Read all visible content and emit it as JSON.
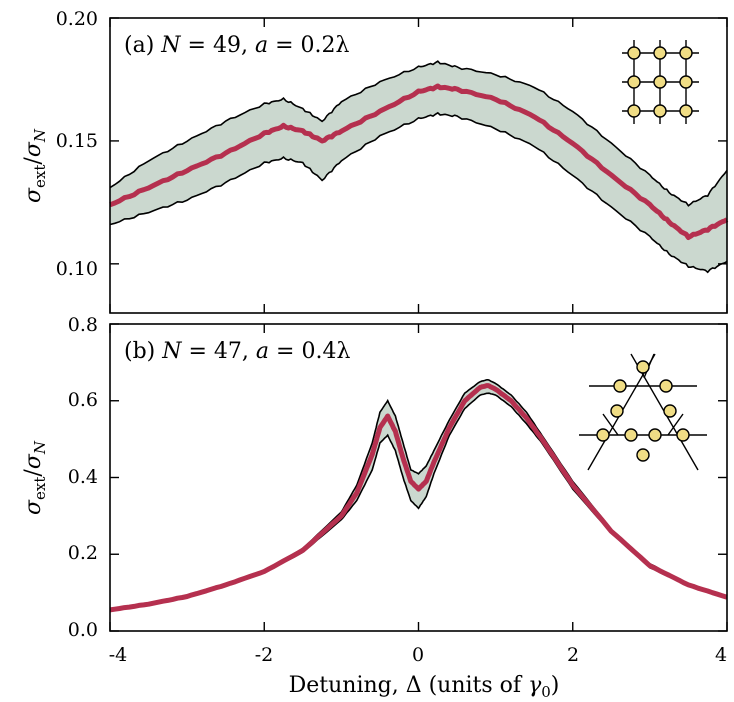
{
  "chart_data": [
    {
      "type": "area",
      "panel_label": "(a)",
      "annotation": {
        "prefix": "(a)",
        "n_sym": "N",
        "n_value": "49",
        "a_sym": "a",
        "a_value": "0.2λ"
      },
      "ylabel": {
        "main": "σ",
        "sub1": "ext",
        "slash": "/",
        "main2": "σ",
        "sub2": "N"
      },
      "xlim": [
        -4,
        4
      ],
      "ylim": [
        0.08,
        0.2
      ],
      "yticks": [
        0.1,
        0.15,
        0.2
      ],
      "ytick_labels": [
        "0.10",
        "0.15",
        "0.20"
      ],
      "xticks": [
        -4,
        -2,
        0,
        2,
        4
      ],
      "inset": "square lattice",
      "mean_color": "#b5304f",
      "band_color": "#cbd8cf",
      "x": [
        -4.0,
        -3.5,
        -3.0,
        -2.5,
        -2.0,
        -1.75,
        -1.5,
        -1.25,
        -1.0,
        -0.5,
        0.0,
        0.25,
        0.5,
        1.0,
        1.5,
        2.0,
        2.5,
        3.0,
        3.25,
        3.5,
        3.75,
        4.0
      ],
      "mean": [
        0.124,
        0.131,
        0.138,
        0.145,
        0.153,
        0.156,
        0.154,
        0.15,
        0.154,
        0.162,
        0.17,
        0.172,
        0.171,
        0.167,
        0.16,
        0.149,
        0.136,
        0.124,
        0.117,
        0.111,
        0.114,
        0.118
      ],
      "upper": [
        0.131,
        0.142,
        0.15,
        0.158,
        0.165,
        0.167,
        0.163,
        0.158,
        0.166,
        0.174,
        0.18,
        0.182,
        0.18,
        0.177,
        0.172,
        0.162,
        0.149,
        0.136,
        0.129,
        0.124,
        0.128,
        0.138
      ],
      "lower": [
        0.116,
        0.121,
        0.126,
        0.133,
        0.141,
        0.143,
        0.141,
        0.134,
        0.142,
        0.152,
        0.159,
        0.161,
        0.16,
        0.155,
        0.148,
        0.136,
        0.123,
        0.111,
        0.104,
        0.099,
        0.097,
        0.101
      ]
    },
    {
      "type": "area",
      "panel_label": "(b)",
      "annotation": {
        "prefix": "(b)",
        "n_sym": "N",
        "n_value": "47",
        "a_sym": "a",
        "a_value": "0.4λ"
      },
      "ylabel": {
        "main": "σ",
        "sub1": "ext",
        "slash": "/",
        "main2": "σ",
        "sub2": "N"
      },
      "xlim": [
        -4,
        4
      ],
      "ylim": [
        0.0,
        0.8
      ],
      "yticks": [
        0.0,
        0.2,
        0.4,
        0.6,
        0.8
      ],
      "ytick_labels": [
        "0.0",
        "0.2",
        "0.4",
        "0.6",
        "0.8"
      ],
      "xticks": [
        -4,
        -2,
        0,
        2,
        4
      ],
      "xtick_labels": [
        "-4",
        "-2",
        "0",
        "2",
        "4"
      ],
      "xlabel": {
        "text": "Detuning, Δ (units of ",
        "sym": "γ",
        "sub": "0",
        "close": ")"
      },
      "inset": "kagome lattice",
      "mean_color": "#b5304f",
      "band_color": "#cbd8cf",
      "x": [
        -4.0,
        -3.5,
        -3.0,
        -2.5,
        -2.0,
        -1.5,
        -1.0,
        -0.8,
        -0.6,
        -0.5,
        -0.4,
        -0.3,
        -0.2,
        -0.1,
        0.0,
        0.1,
        0.2,
        0.4,
        0.6,
        0.8,
        0.9,
        1.0,
        1.2,
        1.4,
        1.6,
        2.0,
        2.5,
        3.0,
        3.5,
        4.0
      ],
      "mean": [
        0.055,
        0.07,
        0.09,
        0.12,
        0.155,
        0.21,
        0.3,
        0.36,
        0.46,
        0.53,
        0.56,
        0.52,
        0.45,
        0.39,
        0.37,
        0.39,
        0.44,
        0.53,
        0.6,
        0.635,
        0.64,
        0.63,
        0.6,
        0.555,
        0.5,
        0.38,
        0.26,
        0.17,
        0.12,
        0.088
      ],
      "upper": [
        0.057,
        0.072,
        0.092,
        0.123,
        0.158,
        0.215,
        0.31,
        0.38,
        0.49,
        0.57,
        0.6,
        0.56,
        0.49,
        0.42,
        0.41,
        0.43,
        0.47,
        0.55,
        0.62,
        0.65,
        0.655,
        0.645,
        0.615,
        0.57,
        0.51,
        0.39,
        0.265,
        0.175,
        0.123,
        0.09
      ],
      "lower": [
        0.053,
        0.068,
        0.088,
        0.117,
        0.152,
        0.205,
        0.29,
        0.34,
        0.42,
        0.49,
        0.51,
        0.47,
        0.4,
        0.34,
        0.32,
        0.35,
        0.41,
        0.51,
        0.58,
        0.615,
        0.62,
        0.615,
        0.585,
        0.54,
        0.49,
        0.37,
        0.255,
        0.165,
        0.117,
        0.086
      ]
    }
  ]
}
